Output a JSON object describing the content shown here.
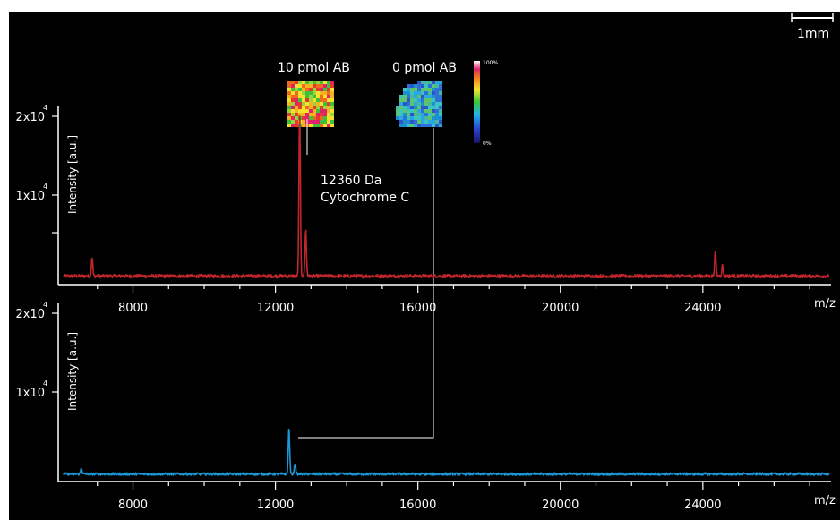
{
  "scale_bar": {
    "label": "1mm"
  },
  "images": {
    "left_label": "10 pmol AB",
    "right_label": "0 pmol AB",
    "colorbar_max": "100%",
    "colorbar_min": "0%"
  },
  "annotation": {
    "line1": "12360 Da",
    "line2": "Cytochrome C"
  },
  "chart_data": [
    {
      "type": "line",
      "name": "top",
      "title": "",
      "xlabel": "m/z",
      "ylabel": "Intensity [a.u.]",
      "xlim": [
        5900,
        27600
      ],
      "ylim": [
        0,
        22000
      ],
      "xticks": [
        8000,
        12000,
        16000,
        20000,
        24000
      ],
      "xtick_labels": [
        "8000",
        "12000",
        "16000",
        "20000",
        "24000"
      ],
      "yticks": [
        {
          "value": 20000,
          "label": "2x10",
          "exp": "4"
        },
        {
          "value": 10000,
          "label": "1x10",
          "exp": "4"
        }
      ],
      "color": "#c0262c",
      "baseline": 400,
      "peaks": [
        {
          "x": 6850,
          "y": 2300
        },
        {
          "x": 12680,
          "y": 20000
        },
        {
          "x": 12850,
          "y": 5500
        },
        {
          "x": 24350,
          "y": 3000
        },
        {
          "x": 24550,
          "y": 1300
        }
      ]
    },
    {
      "type": "line",
      "name": "bottom",
      "title": "",
      "xlabel": "m/z",
      "ylabel": "Intensity [a.u.]",
      "xlim": [
        5900,
        27600
      ],
      "ylim": [
        0,
        22000
      ],
      "xticks": [
        8000,
        12000,
        16000,
        20000,
        24000
      ],
      "xtick_labels": [
        "8000",
        "12000",
        "16000",
        "20000",
        "24000"
      ],
      "yticks": [
        {
          "value": 20000,
          "label": "2x10",
          "exp": "4"
        },
        {
          "value": 10000,
          "label": "1x10",
          "exp": "4"
        }
      ],
      "color": "#1b97d6",
      "baseline": 300,
      "peaks": [
        {
          "x": 6550,
          "y": 700
        },
        {
          "x": 12380,
          "y": 5500
        },
        {
          "x": 12550,
          "y": 1300
        }
      ]
    }
  ]
}
